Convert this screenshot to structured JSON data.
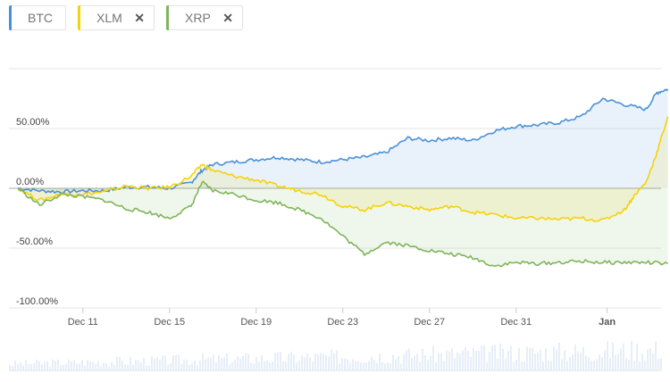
{
  "legend": [
    {
      "name": "BTC",
      "color": "#4a90d9",
      "removable": false
    },
    {
      "name": "XLM",
      "color": "#f5d20a",
      "removable": true
    },
    {
      "name": "XRP",
      "color": "#7fb55a",
      "removable": true
    }
  ],
  "close_symbol": "✕",
  "chart_data": {
    "type": "area",
    "xlabel": "",
    "ylabel": "",
    "x_ticks": [
      "Dec 11",
      "Dec 15",
      "Dec 19",
      "Dec 23",
      "Dec 27",
      "Dec 31",
      "Jan"
    ],
    "y_ticks": [
      "50.00%",
      "0.00%",
      "-50.00%",
      "-100.00%"
    ],
    "ylim": [
      -100,
      100
    ],
    "xlim": [
      "Dec 8",
      "Jan 9"
    ],
    "grid": true,
    "series": [
      {
        "name": "BTC",
        "color": "#4a90d9",
        "points": [
          [
            8,
            0
          ],
          [
            9,
            -2
          ],
          [
            10,
            -3
          ],
          [
            11,
            -2
          ],
          [
            12,
            -2
          ],
          [
            13,
            1
          ],
          [
            14,
            1
          ],
          [
            15,
            0
          ],
          [
            16,
            5
          ],
          [
            16.5,
            15
          ],
          [
            17,
            20
          ],
          [
            18,
            22
          ],
          [
            19,
            24
          ],
          [
            20,
            26
          ],
          [
            21,
            24
          ],
          [
            22,
            22
          ],
          [
            23,
            24
          ],
          [
            24,
            26
          ],
          [
            25,
            30
          ],
          [
            26,
            42
          ],
          [
            27,
            40
          ],
          [
            28,
            42
          ],
          [
            29,
            40
          ],
          [
            30,
            48
          ],
          [
            31,
            52
          ],
          [
            32,
            53
          ],
          [
            33,
            55
          ],
          [
            34,
            60
          ],
          [
            35,
            75
          ],
          [
            36,
            70
          ],
          [
            37,
            66
          ],
          [
            37.5,
            80
          ],
          [
            38,
            83
          ]
        ]
      },
      {
        "name": "XLM",
        "color": "#f5d20a",
        "points": [
          [
            8,
            0
          ],
          [
            9,
            -10
          ],
          [
            10,
            -5
          ],
          [
            11,
            -5
          ],
          [
            12,
            -3
          ],
          [
            13,
            2
          ],
          [
            14,
            0
          ],
          [
            15,
            1
          ],
          [
            16,
            10
          ],
          [
            16.5,
            20
          ],
          [
            17,
            15
          ],
          [
            18,
            10
          ],
          [
            19,
            7
          ],
          [
            20,
            2
          ],
          [
            21,
            -2
          ],
          [
            22,
            -5
          ],
          [
            23,
            -15
          ],
          [
            24,
            -18
          ],
          [
            25,
            -12
          ],
          [
            26,
            -15
          ],
          [
            27,
            -18
          ],
          [
            28,
            -15
          ],
          [
            29,
            -20
          ],
          [
            30,
            -22
          ],
          [
            31,
            -25
          ],
          [
            32,
            -25
          ],
          [
            33,
            -26
          ],
          [
            34,
            -25
          ],
          [
            35,
            -27
          ],
          [
            36,
            -18
          ],
          [
            36.5,
            -5
          ],
          [
            37,
            5
          ],
          [
            37.5,
            30
          ],
          [
            38,
            60
          ]
        ]
      },
      {
        "name": "XRP",
        "color": "#7fb55a",
        "points": [
          [
            8,
            0
          ],
          [
            9,
            -14
          ],
          [
            10,
            -5
          ],
          [
            11,
            -7
          ],
          [
            12,
            -10
          ],
          [
            13,
            -17
          ],
          [
            14,
            -20
          ],
          [
            15,
            -25
          ],
          [
            16,
            -15
          ],
          [
            16.5,
            5
          ],
          [
            17,
            -2
          ],
          [
            18,
            -5
          ],
          [
            19,
            -10
          ],
          [
            20,
            -12
          ],
          [
            21,
            -18
          ],
          [
            22,
            -25
          ],
          [
            23,
            -40
          ],
          [
            24,
            -55
          ],
          [
            25,
            -45
          ],
          [
            26,
            -48
          ],
          [
            27,
            -52
          ],
          [
            28,
            -55
          ],
          [
            29,
            -58
          ],
          [
            30,
            -65
          ],
          [
            31,
            -62
          ],
          [
            32,
            -63
          ],
          [
            33,
            -62
          ],
          [
            34,
            -61
          ],
          [
            35,
            -62
          ],
          [
            36,
            -62
          ],
          [
            37,
            -62
          ],
          [
            38,
            -63
          ]
        ]
      }
    ]
  }
}
